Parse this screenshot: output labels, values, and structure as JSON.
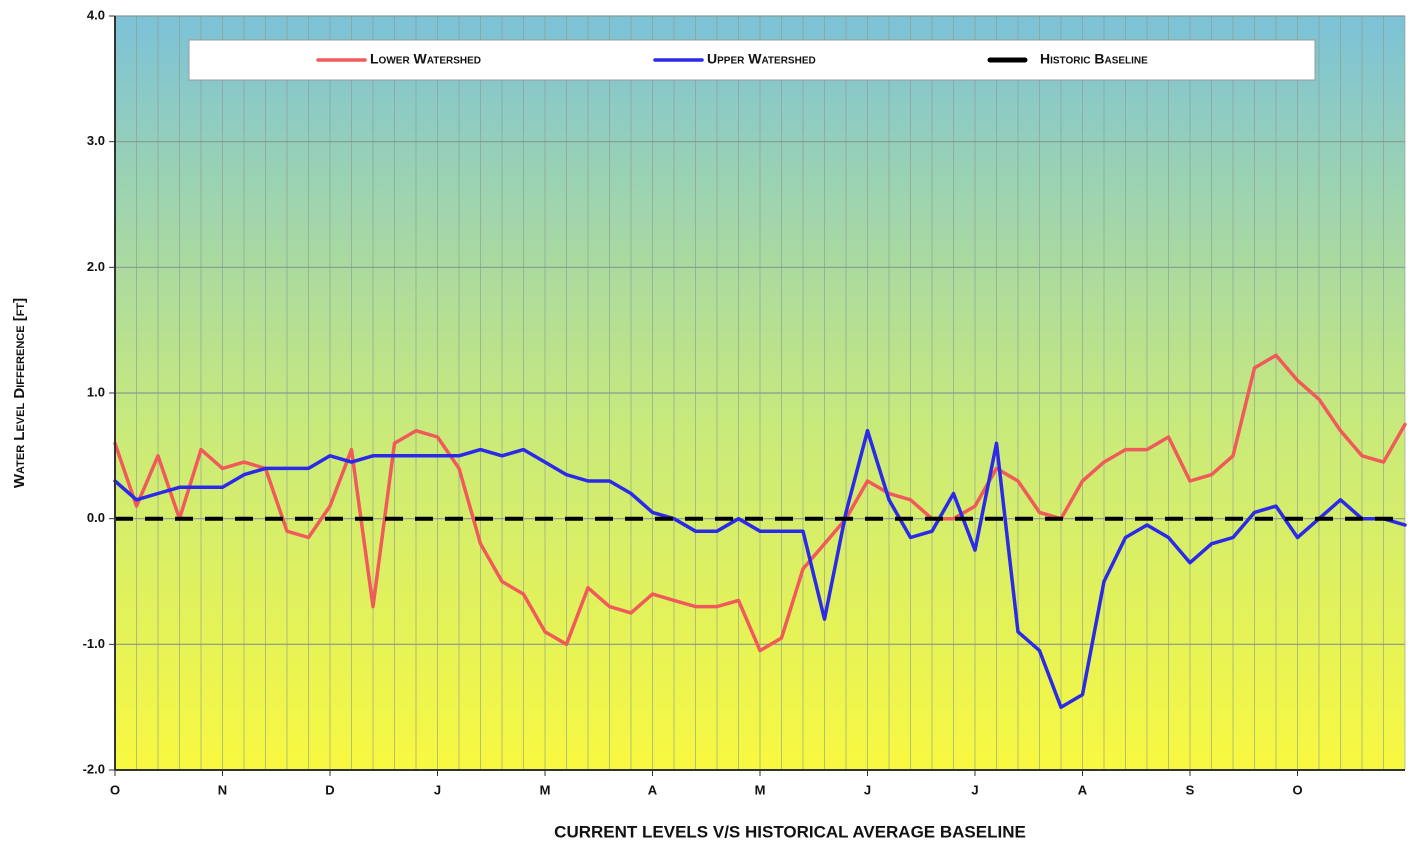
{
  "chart_data": {
    "type": "line",
    "title": "CURRENT LEVELS  V/S  HISTORICAL AVERAGE BASELINE",
    "y_label": "Water Level Difference [ft]",
    "xlim": [
      0,
      12
    ],
    "xticks": [
      {
        "value": 0,
        "label": "O"
      },
      {
        "value": 1,
        "label": "N"
      },
      {
        "value": 2,
        "label": "D"
      },
      {
        "value": 3,
        "label": "J"
      },
      {
        "value": 4,
        "label": "M"
      },
      {
        "value": 5,
        "label": "A"
      },
      {
        "value": 6,
        "label": "M"
      },
      {
        "value": 7,
        "label": "J"
      },
      {
        "value": 8,
        "label": "J"
      },
      {
        "value": 9,
        "label": "A"
      },
      {
        "value": 10,
        "label": "S"
      },
      {
        "value": 11,
        "label": "O"
      }
    ],
    "ylim": [
      -2,
      4
    ],
    "yticks": [
      {
        "value": -2,
        "label": "-2.0"
      },
      {
        "value": -1,
        "label": "-1.0"
      },
      {
        "value": 0,
        "label": "0.0"
      },
      {
        "value": 1,
        "label": "1.0"
      },
      {
        "value": 2,
        "label": "2.0"
      },
      {
        "value": 3,
        "label": "3.0"
      },
      {
        "value": 4,
        "label": "4.0"
      }
    ],
    "grid": true,
    "x": [
      0,
      0.2,
      0.4,
      0.6,
      0.8,
      1,
      1.2,
      1.4,
      1.6,
      1.8,
      2,
      2.2,
      2.4,
      2.6,
      2.8,
      3,
      3.2,
      3.4,
      3.6,
      3.8,
      4,
      4.2,
      4.4,
      4.6,
      4.8,
      5,
      5.2,
      5.4,
      5.6,
      5.8,
      6,
      6.2,
      6.4,
      6.6,
      6.8,
      7,
      7.2,
      7.4,
      7.6,
      7.8,
      8,
      8.2,
      8.4,
      8.6,
      8.8,
      9,
      9.2,
      9.4,
      9.6,
      9.8,
      10,
      10.2,
      10.4,
      10.6,
      10.8,
      11,
      11.2,
      11.4,
      11.6,
      11.8,
      12
    ],
    "series": [
      {
        "name": "Lower Watershed",
        "color": "#f05a5a",
        "values": [
          0.6,
          0.1,
          0.5,
          0.0,
          0.55,
          0.4,
          0.45,
          0.4,
          -0.1,
          -0.15,
          0.1,
          0.55,
          -0.7,
          0.6,
          0.7,
          0.65,
          0.4,
          -0.2,
          -0.5,
          -0.6,
          -0.9,
          -1.0,
          -0.55,
          -0.7,
          -0.75,
          -0.6,
          -0.65,
          -0.7,
          -0.7,
          -0.65,
          -1.05,
          -0.95,
          -0.4,
          -0.2,
          0.0,
          0.3,
          0.2,
          0.15,
          0.0,
          0.0,
          0.1,
          0.4,
          0.3,
          0.05,
          0.0,
          0.3,
          0.45,
          0.55,
          0.55,
          0.65,
          0.3,
          0.35,
          0.5,
          1.2,
          1.3,
          1.1,
          0.95,
          0.7,
          0.5,
          0.45,
          0.75
        ]
      },
      {
        "name": "Upper Watershed",
        "color": "#2a2ae8",
        "values": [
          0.3,
          0.15,
          0.2,
          0.25,
          0.25,
          0.25,
          0.35,
          0.4,
          0.4,
          0.4,
          0.5,
          0.45,
          0.5,
          0.5,
          0.5,
          0.5,
          0.5,
          0.55,
          0.5,
          0.55,
          0.45,
          0.35,
          0.3,
          0.3,
          0.2,
          0.05,
          0.0,
          -0.1,
          -0.1,
          0.0,
          -0.1,
          -0.1,
          -0.1,
          -0.8,
          0.05,
          0.7,
          0.15,
          -0.15,
          -0.1,
          0.2,
          -0.25,
          0.6,
          -0.9,
          -1.05,
          -1.5,
          -1.4,
          -0.5,
          -0.15,
          -0.05,
          -0.15,
          -0.35,
          -0.2,
          -0.15,
          0.05,
          0.1,
          -0.15,
          0.0,
          0.15,
          0.0,
          0.0,
          -0.05
        ]
      },
      {
        "name": "Historic Baseline",
        "color": "#000000",
        "dashed": true,
        "x": [
          0,
          12
        ],
        "values": [
          0,
          0
        ]
      }
    ]
  }
}
